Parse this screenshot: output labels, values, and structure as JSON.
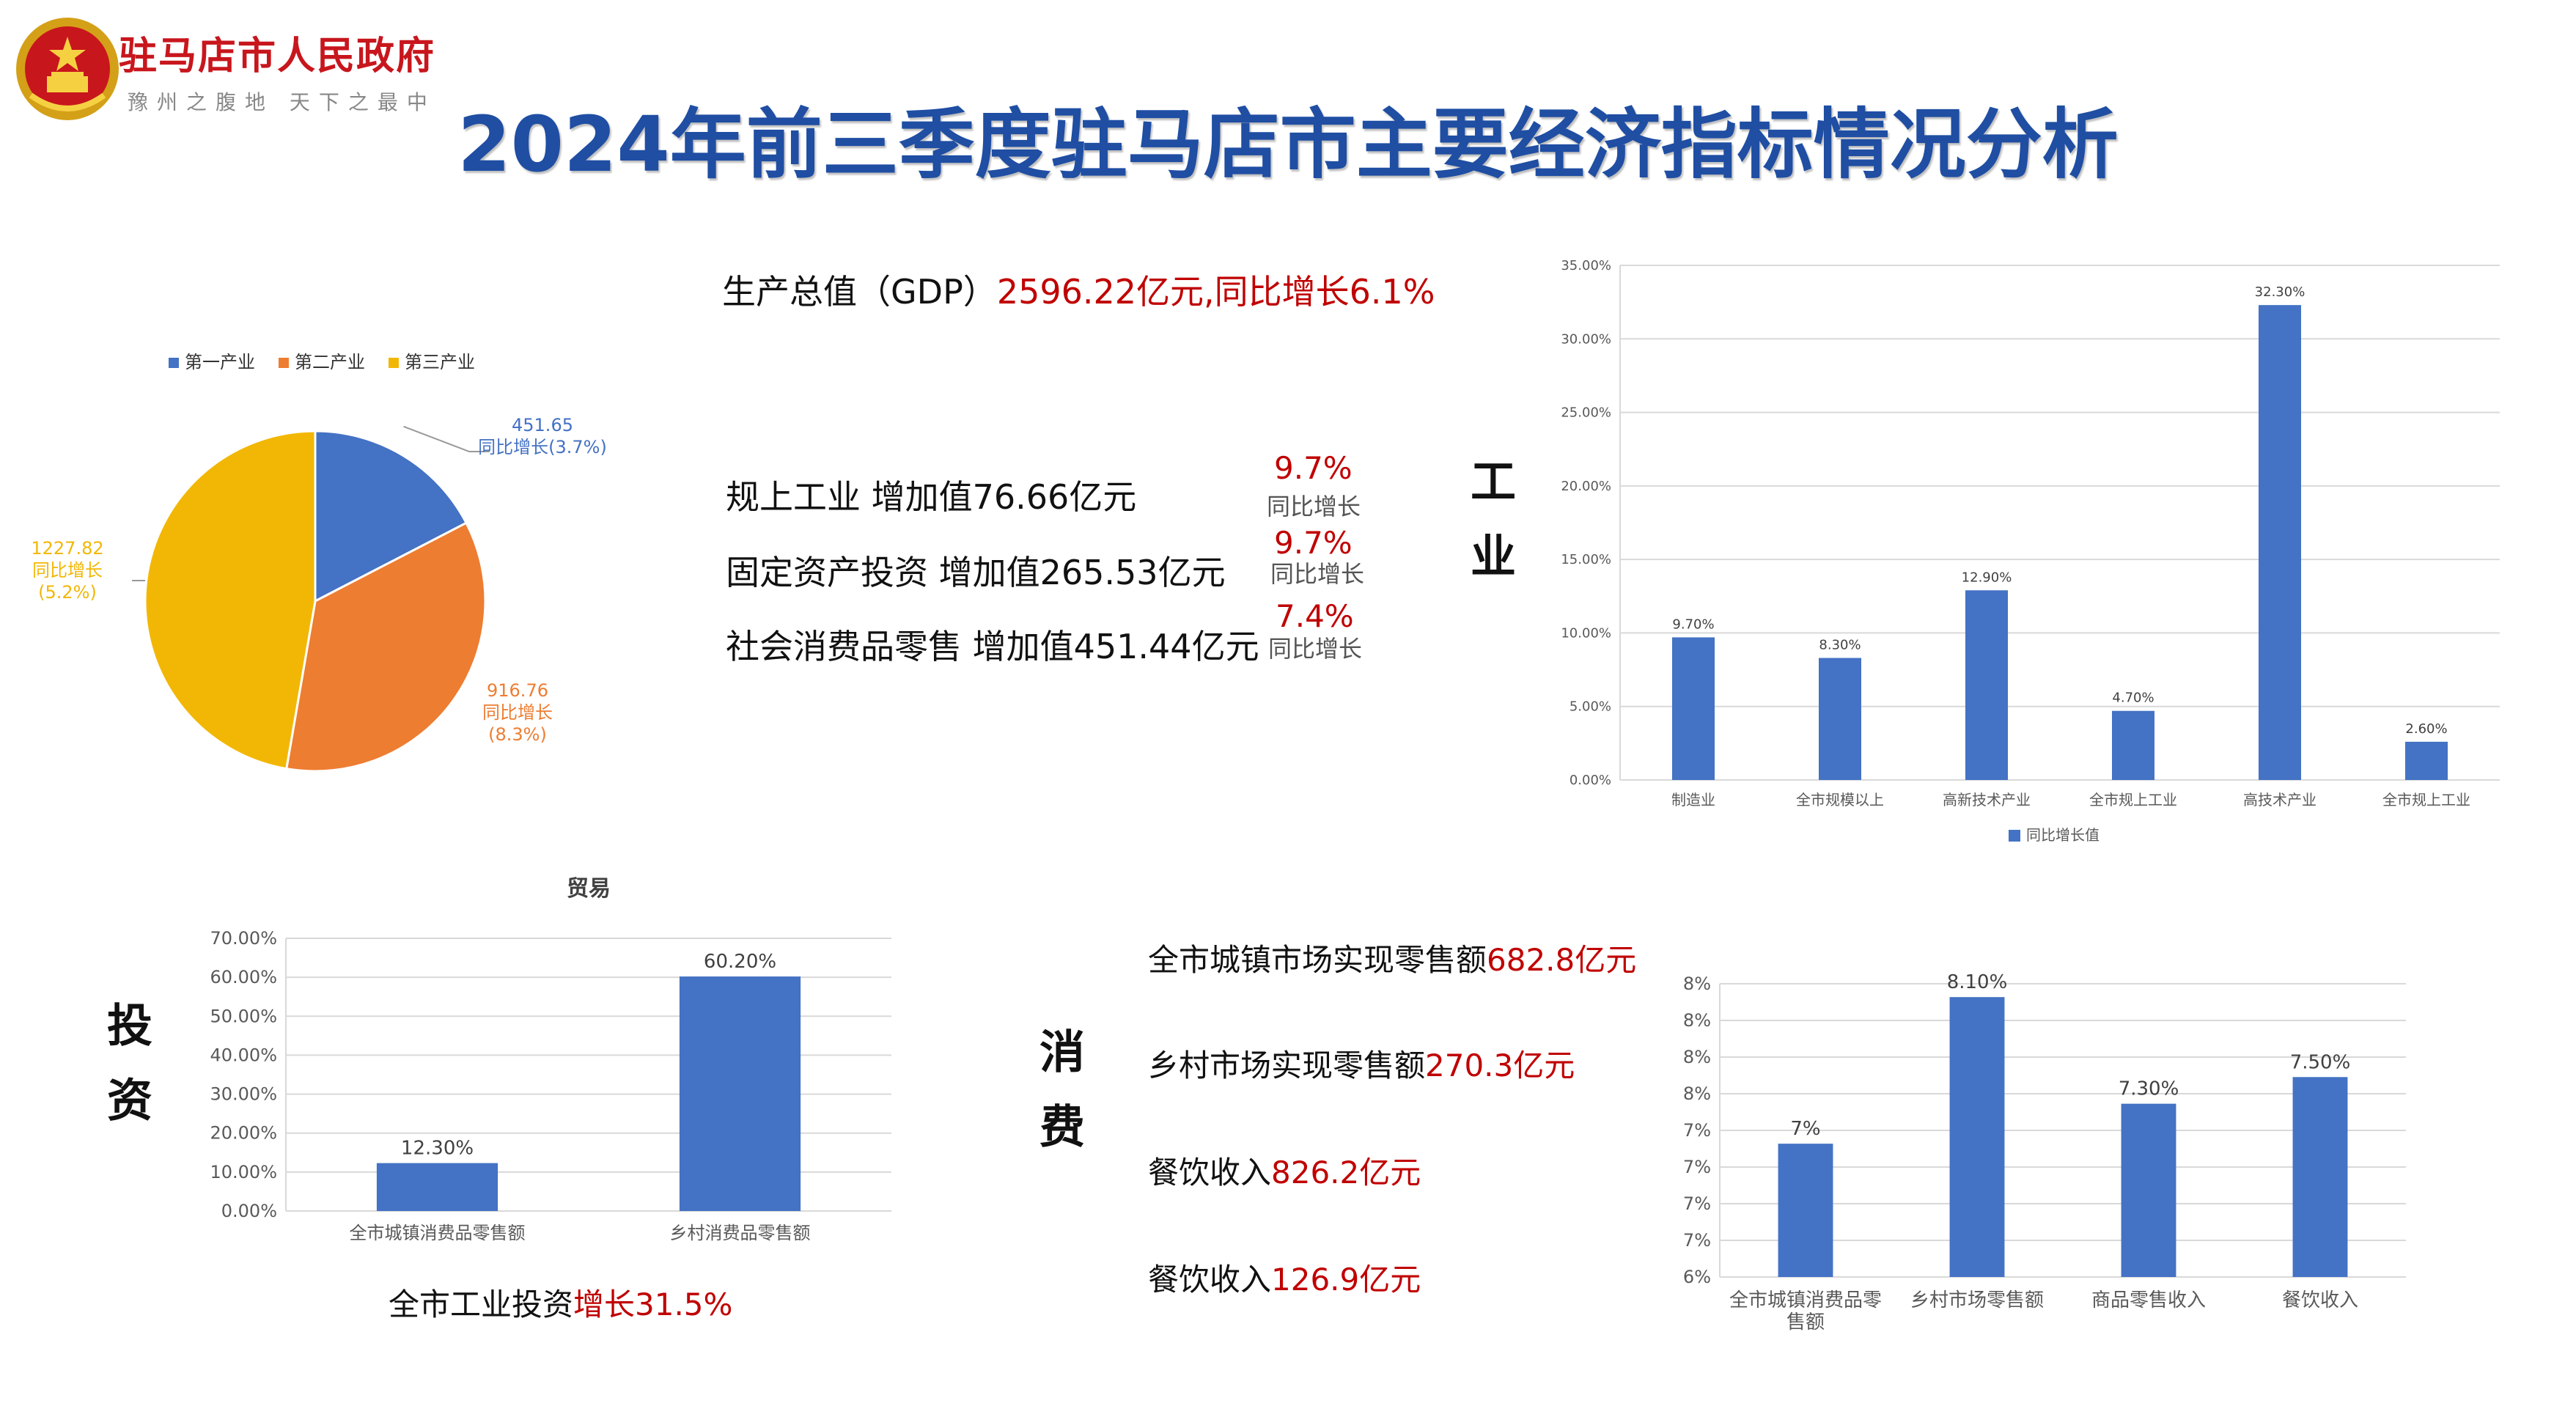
{
  "header": {
    "org_name": "驻马店市人民政府",
    "slogan": "豫州之腹地 天下之最中",
    "title": "2024年前三季度驻马店市主要经济指标情况分析"
  },
  "gdp": {
    "label": "生产总值（GDP）",
    "value": "2596.22亿元,同比增长6.1%"
  },
  "indicators": [
    {
      "label": "规上工业 增加值76.66亿元",
      "pct": "9.7%",
      "note": "同比增长"
    },
    {
      "label": "固定资产投资 增加值265.53亿元",
      "pct": "9.7%",
      "note": "同比增长"
    },
    {
      "label": "社会消费品零售 增加值451.44亿元",
      "pct": "7.4%",
      "note": "同比增长"
    }
  ],
  "section_labels": {
    "industry": "工业",
    "investment": "投资",
    "consumption": "消费"
  },
  "investment_caption": {
    "label": "全市工业投资",
    "value": "增长31.5%"
  },
  "consumption_texts": [
    {
      "label": "全市城镇市场实现零售额",
      "value": "682.8亿元"
    },
    {
      "label": "乡村市场实现零售额",
      "value": "270.3亿元"
    },
    {
      "label": "餐饮收入",
      "value": "826.2亿元"
    },
    {
      "label": "餐饮收入",
      "value": "126.9亿元"
    }
  ],
  "chart_data": [
    {
      "type": "pie",
      "legend_position": "top",
      "series": [
        {
          "name": "第一产业",
          "value": 451.65,
          "label_value": "451.65",
          "label_note": "同比增长(3.7%)",
          "color": "#4472c4"
        },
        {
          "name": "第二产业",
          "value": 916.76,
          "label_value": "916.76",
          "label_note": "同比增长",
          "label_extra": "(8.3%)",
          "color": "#ed7d31"
        },
        {
          "name": "第三产业",
          "value": 1227.82,
          "label_value": "1227.82",
          "label_note": "同比增长",
          "label_extra": "(5.2%)",
          "color": "#f2b705"
        }
      ]
    },
    {
      "type": "bar",
      "title": "",
      "categories": [
        "制造业",
        "全市规模以上",
        "高新技术产业",
        "全市规上工业",
        "高技术产业",
        "全市规上工业"
      ],
      "series": [
        {
          "name": "同比增长值",
          "values": [
            9.7,
            8.3,
            12.9,
            4.7,
            32.3,
            2.6
          ]
        }
      ],
      "data_labels": [
        "9.70%",
        "8.30%",
        "12.90%",
        "4.70%",
        "32.30%",
        "2.60%"
      ],
      "ylim": [
        0,
        35
      ],
      "yticks": [
        "0.00%",
        "5.00%",
        "10.00%",
        "15.00%",
        "20.00%",
        "25.00%",
        "30.00%",
        "35.00%"
      ],
      "grid": true,
      "legend_position": "bottom",
      "color": "#4472c4"
    },
    {
      "type": "bar",
      "title": "贸易",
      "categories": [
        "全市城镇消费品零售额",
        "乡村消费品零售额"
      ],
      "values": [
        12.3,
        60.2
      ],
      "data_labels": [
        "12.30%",
        "60.20%"
      ],
      "ylim": [
        0,
        70
      ],
      "yticks": [
        "0.00%",
        "10.00%",
        "20.00%",
        "30.00%",
        "40.00%",
        "50.00%",
        "60.00%",
        "70.00%"
      ],
      "grid": true,
      "color": "#4472c4"
    },
    {
      "type": "bar",
      "categories": [
        "全市城镇消费品零售额",
        "乡村市场零售额",
        "商品零售收入",
        "餐饮收入"
      ],
      "values": [
        7.0,
        8.1,
        7.3,
        7.5
      ],
      "data_labels": [
        "7%",
        "8.10%",
        "7.30%",
        "7.50%"
      ],
      "ylim": [
        6,
        8.2
      ],
      "yticks": [
        "6%",
        "7%",
        "7%",
        "7%",
        "7%",
        "8%",
        "8%",
        "8%",
        "8%"
      ],
      "grid": true,
      "color": "#4472c4"
    }
  ]
}
